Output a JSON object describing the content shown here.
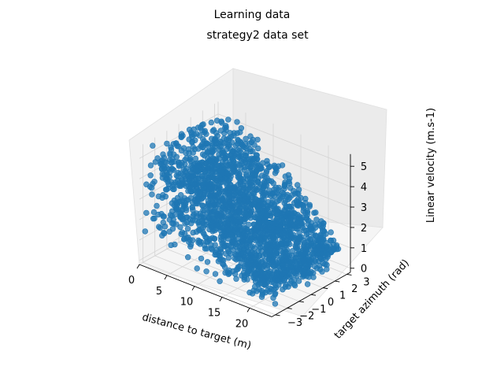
{
  "chart_data": {
    "type": "scatter",
    "projection": "3d",
    "title": "Learning data",
    "subtitle": "strategy2 data set",
    "xlabel": "distance to target (m)",
    "ylabel": "target azimuth (rad)",
    "zlabel": "Linear velocity (m.s-1)",
    "xlim": [
      0,
      24
    ],
    "ylim": [
      -3.3,
      3.3
    ],
    "zlim": [
      -0.2,
      5.6
    ],
    "xticks": [
      "0",
      "5",
      "10",
      "15",
      "20"
    ],
    "yticks": [
      "−3",
      "−2",
      "−1",
      "0",
      "1",
      "2",
      "3"
    ],
    "zticks": [
      "0",
      "1",
      "2",
      "3",
      "4",
      "5"
    ],
    "grid": true,
    "series": [
      {
        "marker_color": "#1f77b4",
        "marker": "circle",
        "x_range": [
          0.5,
          23
        ],
        "y_range": [
          -3.14,
          3.14
        ],
        "z_range": [
          0,
          5.5
        ]
      }
    ]
  }
}
